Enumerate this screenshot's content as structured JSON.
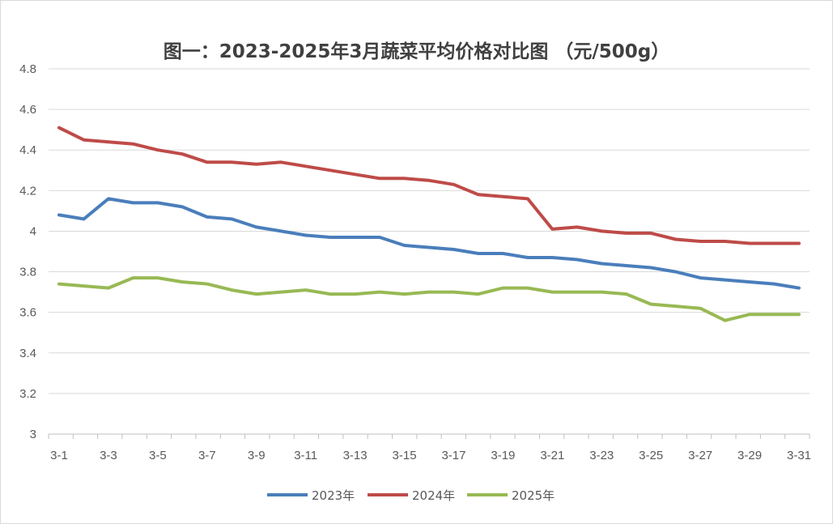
{
  "chart_data": {
    "type": "line",
    "title": "图一：2023-2025年3月蔬菜平均价格对比图 （元/500g）",
    "xlabel": "",
    "ylabel": "",
    "ylim": [
      3,
      4.8
    ],
    "yticks": [
      "3",
      "3.2",
      "3.4",
      "3.6",
      "3.8",
      "4",
      "4.2",
      "4.4",
      "4.6",
      "4.8"
    ],
    "grid": true,
    "legend_position": "bottom",
    "categories": [
      "3-1",
      "3-2",
      "3-3",
      "3-4",
      "3-5",
      "3-6",
      "3-7",
      "3-8",
      "3-9",
      "3-10",
      "3-11",
      "3-12",
      "3-13",
      "3-14",
      "3-15",
      "3-16",
      "3-17",
      "3-18",
      "3-19",
      "3-20",
      "3-21",
      "3-22",
      "3-23",
      "3-24",
      "3-25",
      "3-26",
      "3-27",
      "3-28",
      "3-29",
      "3-30",
      "3-31"
    ],
    "series": [
      {
        "name": "2023年",
        "color": "#4a7ebb",
        "values": [
          4.08,
          4.06,
          4.16,
          4.14,
          4.14,
          4.12,
          4.07,
          4.06,
          4.02,
          4.0,
          3.98,
          3.97,
          3.97,
          3.97,
          3.93,
          3.92,
          3.91,
          3.89,
          3.89,
          3.87,
          3.87,
          3.86,
          3.84,
          3.83,
          3.82,
          3.8,
          3.77,
          3.76,
          3.75,
          3.74,
          3.72
        ]
      },
      {
        "name": "2024年",
        "color": "#be4b48",
        "values": [
          4.51,
          4.45,
          4.44,
          4.43,
          4.4,
          4.38,
          4.34,
          4.34,
          4.33,
          4.34,
          4.32,
          4.3,
          4.28,
          4.26,
          4.26,
          4.25,
          4.23,
          4.18,
          4.17,
          4.16,
          4.01,
          4.02,
          4.0,
          3.99,
          3.99,
          3.96,
          3.95,
          3.95,
          3.94,
          3.94,
          3.94
        ]
      },
      {
        "name": "2025年",
        "color": "#98b954",
        "values": [
          3.74,
          3.73,
          3.72,
          3.77,
          3.77,
          3.75,
          3.74,
          3.71,
          3.69,
          3.7,
          3.71,
          3.69,
          3.69,
          3.7,
          3.69,
          3.7,
          3.7,
          3.69,
          3.72,
          3.72,
          3.7,
          3.7,
          3.7,
          3.69,
          3.64,
          3.63,
          3.62,
          3.56,
          3.59,
          3.59,
          3.59
        ]
      }
    ]
  }
}
